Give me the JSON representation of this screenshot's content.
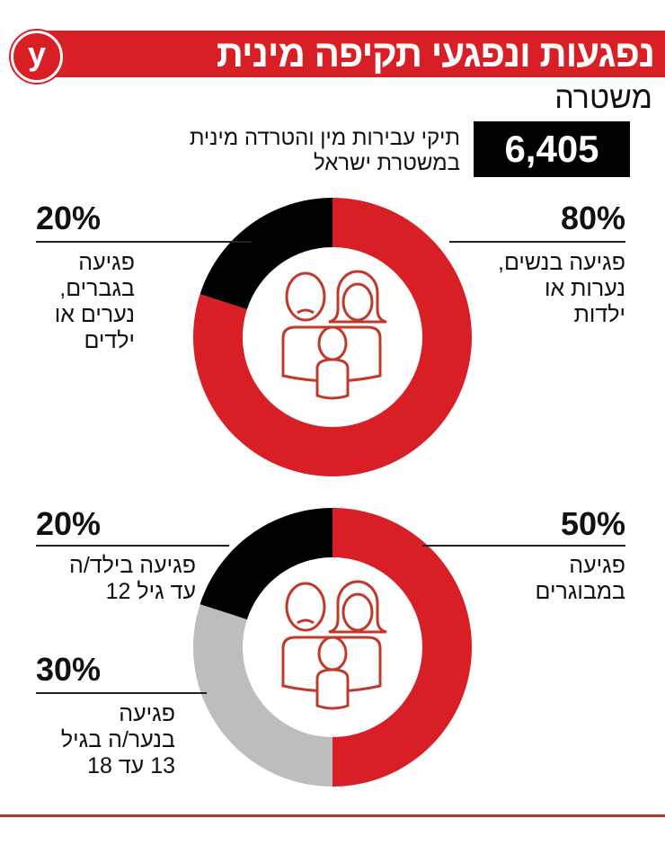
{
  "header": {
    "title": "נפגעות ונפגעי תקיפה מינית",
    "logo": "y",
    "subtitle": "משטרה"
  },
  "total": {
    "value": "6,405",
    "description_line1": "תיקי עבירות מין והטרדה מינית",
    "description_line2": "במשטרת ישראל"
  },
  "colors": {
    "red": "#d91f26",
    "black": "#000000",
    "grey": "#bcbdbf",
    "icon": "#c0392b"
  },
  "chart_data": [
    {
      "type": "pie",
      "donut": true,
      "slices": [
        {
          "value": 80,
          "label_pct": "80%",
          "label_line1": "פגיעה בנשים,",
          "label_line2": "נערות או",
          "label_line3": "ילדות",
          "color": "#d91f26"
        },
        {
          "value": 20,
          "label_pct": "20%",
          "label_line1": "פגיעה",
          "label_line2": "בגברים,",
          "label_line3": "נערים או",
          "label_line4": "ילדים",
          "color": "#000000"
        }
      ],
      "center_icon": "family-icon"
    },
    {
      "type": "pie",
      "donut": true,
      "slices": [
        {
          "value": 50,
          "label_pct": "50%",
          "label_line1": "פגיעה",
          "label_line2": "במבוגרים",
          "color": "#d91f26"
        },
        {
          "value": 30,
          "label_pct": "30%",
          "label_line1": "פגיעה",
          "label_line2": "בנער/ה בגיל",
          "label_line3": "13 עד 18",
          "color": "#bcbdbf"
        },
        {
          "value": 20,
          "label_pct": "20%",
          "label_line1": "פגיעה בילד/ה",
          "label_line2": "עד גיל 12",
          "color": "#000000"
        }
      ],
      "center_icon": "family-icon"
    }
  ]
}
